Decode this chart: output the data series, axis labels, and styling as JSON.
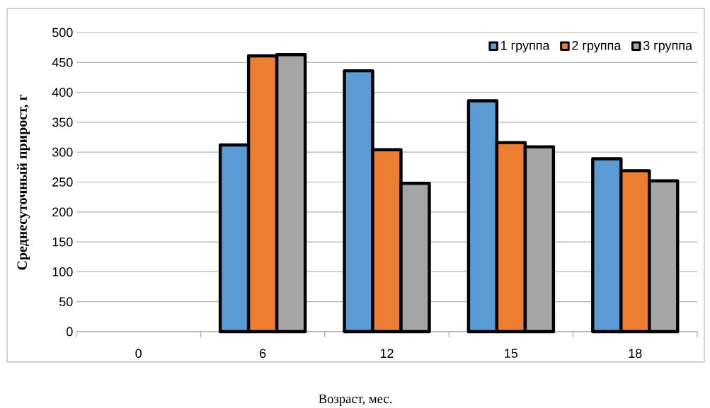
{
  "chart_data": {
    "type": "bar",
    "xlabel": "Возраст, мес.",
    "ylabel": "Среднесуточный прирост, г",
    "categories": [
      "0",
      "6",
      "12",
      "15",
      "18"
    ],
    "series": [
      {
        "name": "1 группа",
        "color": "#5b9bd5",
        "values": [
          null,
          312,
          436,
          386,
          289
        ]
      },
      {
        "name": "2 группа",
        "color": "#ed7d31",
        "values": [
          null,
          461,
          304,
          316,
          269
        ]
      },
      {
        "name": "3 группа",
        "color": "#a5a5a5",
        "values": [
          null,
          463,
          248,
          309,
          252
        ]
      }
    ],
    "ylim": [
      0,
      500
    ],
    "yticks": [
      0,
      50,
      100,
      150,
      200,
      250,
      300,
      350,
      400,
      450,
      500
    ],
    "grid": "y",
    "legend": "top right"
  }
}
